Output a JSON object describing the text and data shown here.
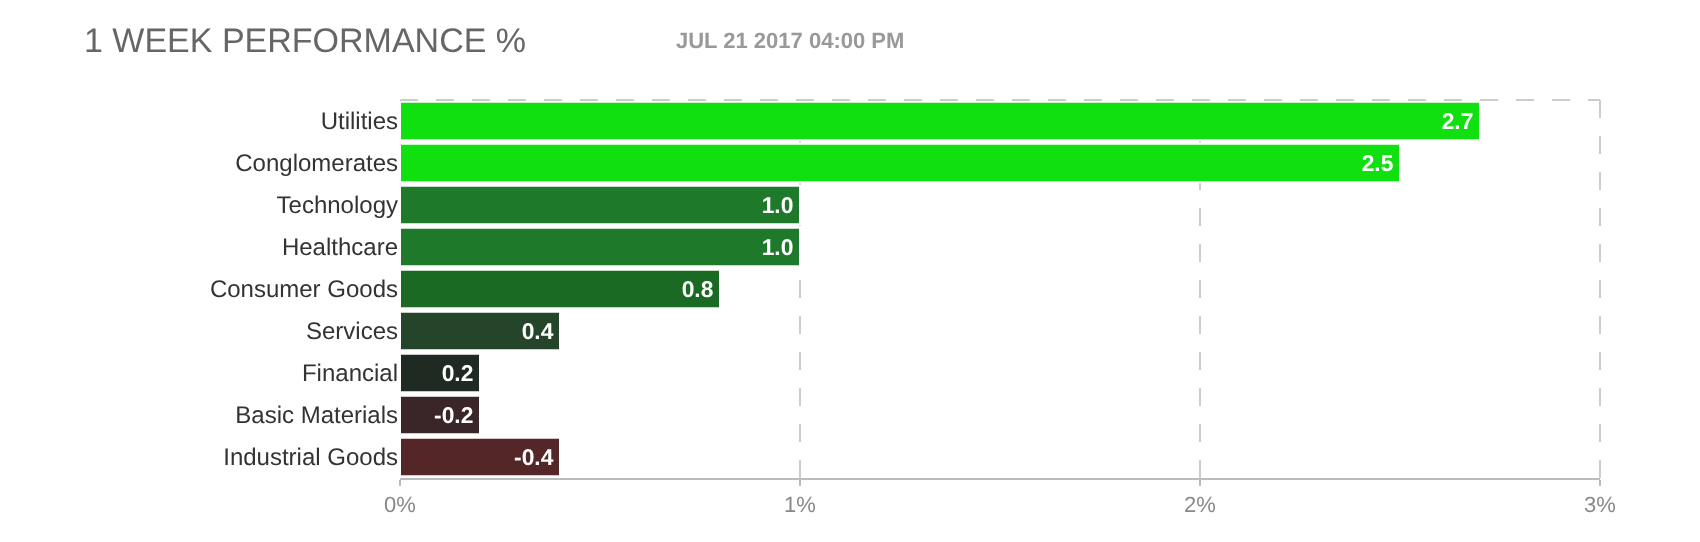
{
  "chart_data": {
    "type": "bar",
    "orientation": "horizontal",
    "title": "1 WEEK PERFORMANCE %",
    "subtitle": "JUL 21 2017 04:00 PM",
    "categories": [
      "Utilities",
      "Conglomerates",
      "Technology",
      "Healthcare",
      "Consumer Goods",
      "Services",
      "Financial",
      "Basic Materials",
      "Industrial Goods"
    ],
    "values": [
      2.7,
      2.5,
      1.0,
      1.0,
      0.8,
      0.4,
      0.2,
      -0.2,
      -0.4
    ],
    "base": [
      0,
      0,
      0,
      0,
      0,
      0,
      0,
      0.2,
      0.4
    ],
    "value_labels": [
      "2.7",
      "2.5",
      "1.0",
      "1.0",
      "0.8",
      "0.4",
      "0.2",
      "-0.2",
      "-0.4"
    ],
    "colors": [
      "#10e010",
      "#10e010",
      "#1e7a2a",
      "#1e7a2a",
      "#1a6a24",
      "#24452a",
      "#1f2a22",
      "#3a2528",
      "#552628"
    ],
    "xlim": [
      0,
      3
    ],
    "xticks": [
      {
        "value": 0,
        "label": "0%"
      },
      {
        "value": 1,
        "label": "1%"
      },
      {
        "value": 2,
        "label": "2%"
      },
      {
        "value": 3,
        "label": "3%"
      }
    ],
    "grid": "x"
  }
}
